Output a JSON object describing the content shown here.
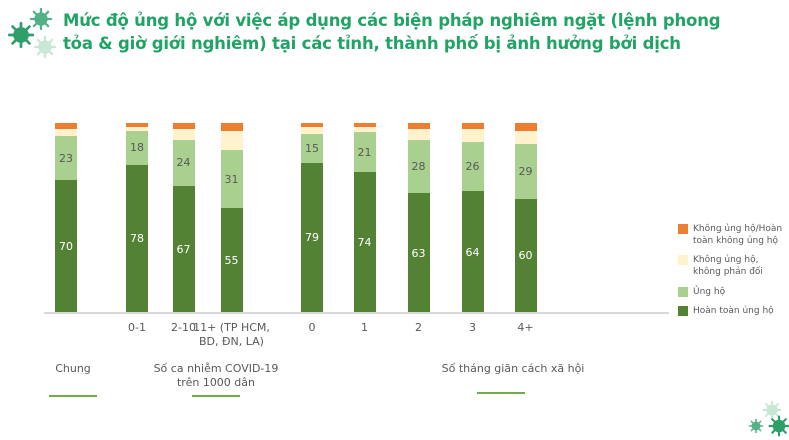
{
  "chart_data": {
    "type": "bar",
    "stacked": true,
    "unit": "percent",
    "title": "Mức độ ủng hộ với việc áp dụng các biện pháp nghiêm ngặt (lệnh phong\ntỏa & giờ giới nghiêm) tại các tỉnh, thành phố bị ảnh hưởng bởi dịch",
    "categories": [
      "",
      "0-1",
      "2-10",
      "11+ (TP HCM,\nBD, ĐN, LA)",
      "0",
      "1",
      "2",
      "3",
      "4+"
    ],
    "series": [
      {
        "name": "Hoàn toàn ủng hộ",
        "color": "#548235",
        "label_color": "#FFFFFF",
        "show_labels": true,
        "values": [
          70,
          78,
          67,
          55,
          79,
          74,
          63,
          64,
          60
        ]
      },
      {
        "name": "Ủng hộ",
        "color": "#A9D08E",
        "label_color": "#595959",
        "show_labels": true,
        "values": [
          23,
          18,
          24,
          31,
          15,
          21,
          28,
          26,
          29
        ]
      },
      {
        "name": "Không ủng hộ, không phản đối",
        "color": "#FFF2CC",
        "label_color": "#595959",
        "show_labels": false,
        "values": [
          4,
          2,
          6,
          10,
          4,
          3,
          6,
          7,
          7
        ]
      },
      {
        "name": "Không ủng hộ/Hoàn toàn không ủng hộ",
        "color": "#ED7D31",
        "label_color": "#FFFFFF",
        "show_labels": false,
        "values": [
          3,
          2,
          3,
          4,
          2,
          2,
          3,
          3,
          4
        ]
      }
    ],
    "groups": [
      {
        "label": "Chung"
      },
      {
        "label": "Số ca nhiễm COVID-19\ntrên 1000 dân"
      },
      {
        "label": "Số tháng giãn cách xã hội"
      }
    ],
    "ylim": [
      0,
      100
    ],
    "grid": false,
    "legend_position": "right"
  },
  "legend": {
    "items": [
      {
        "label": "Không ủng hộ/Hoàn toàn không ủng hộ",
        "color": "#ED7D31"
      },
      {
        "label": "Không ủng hộ, không phản đối",
        "color": "#FFF2CC"
      },
      {
        "label": "Ủng hộ",
        "color": "#A9D08E"
      },
      {
        "label": "Hoàn toàn ủng hộ",
        "color": "#548235"
      }
    ]
  },
  "colors": {
    "title_text": "#21A366",
    "axis_line": "#D9D9D9",
    "tick_text": "#595959",
    "group_underline": "#70AD47",
    "virus_dark": "#2F9E68",
    "virus_medium": "#52B185",
    "virus_pale": "#C9E7D6"
  },
  "decorations": {
    "top_left": "virus-cluster-icon",
    "bottom_right": "virus-cluster-icon"
  }
}
